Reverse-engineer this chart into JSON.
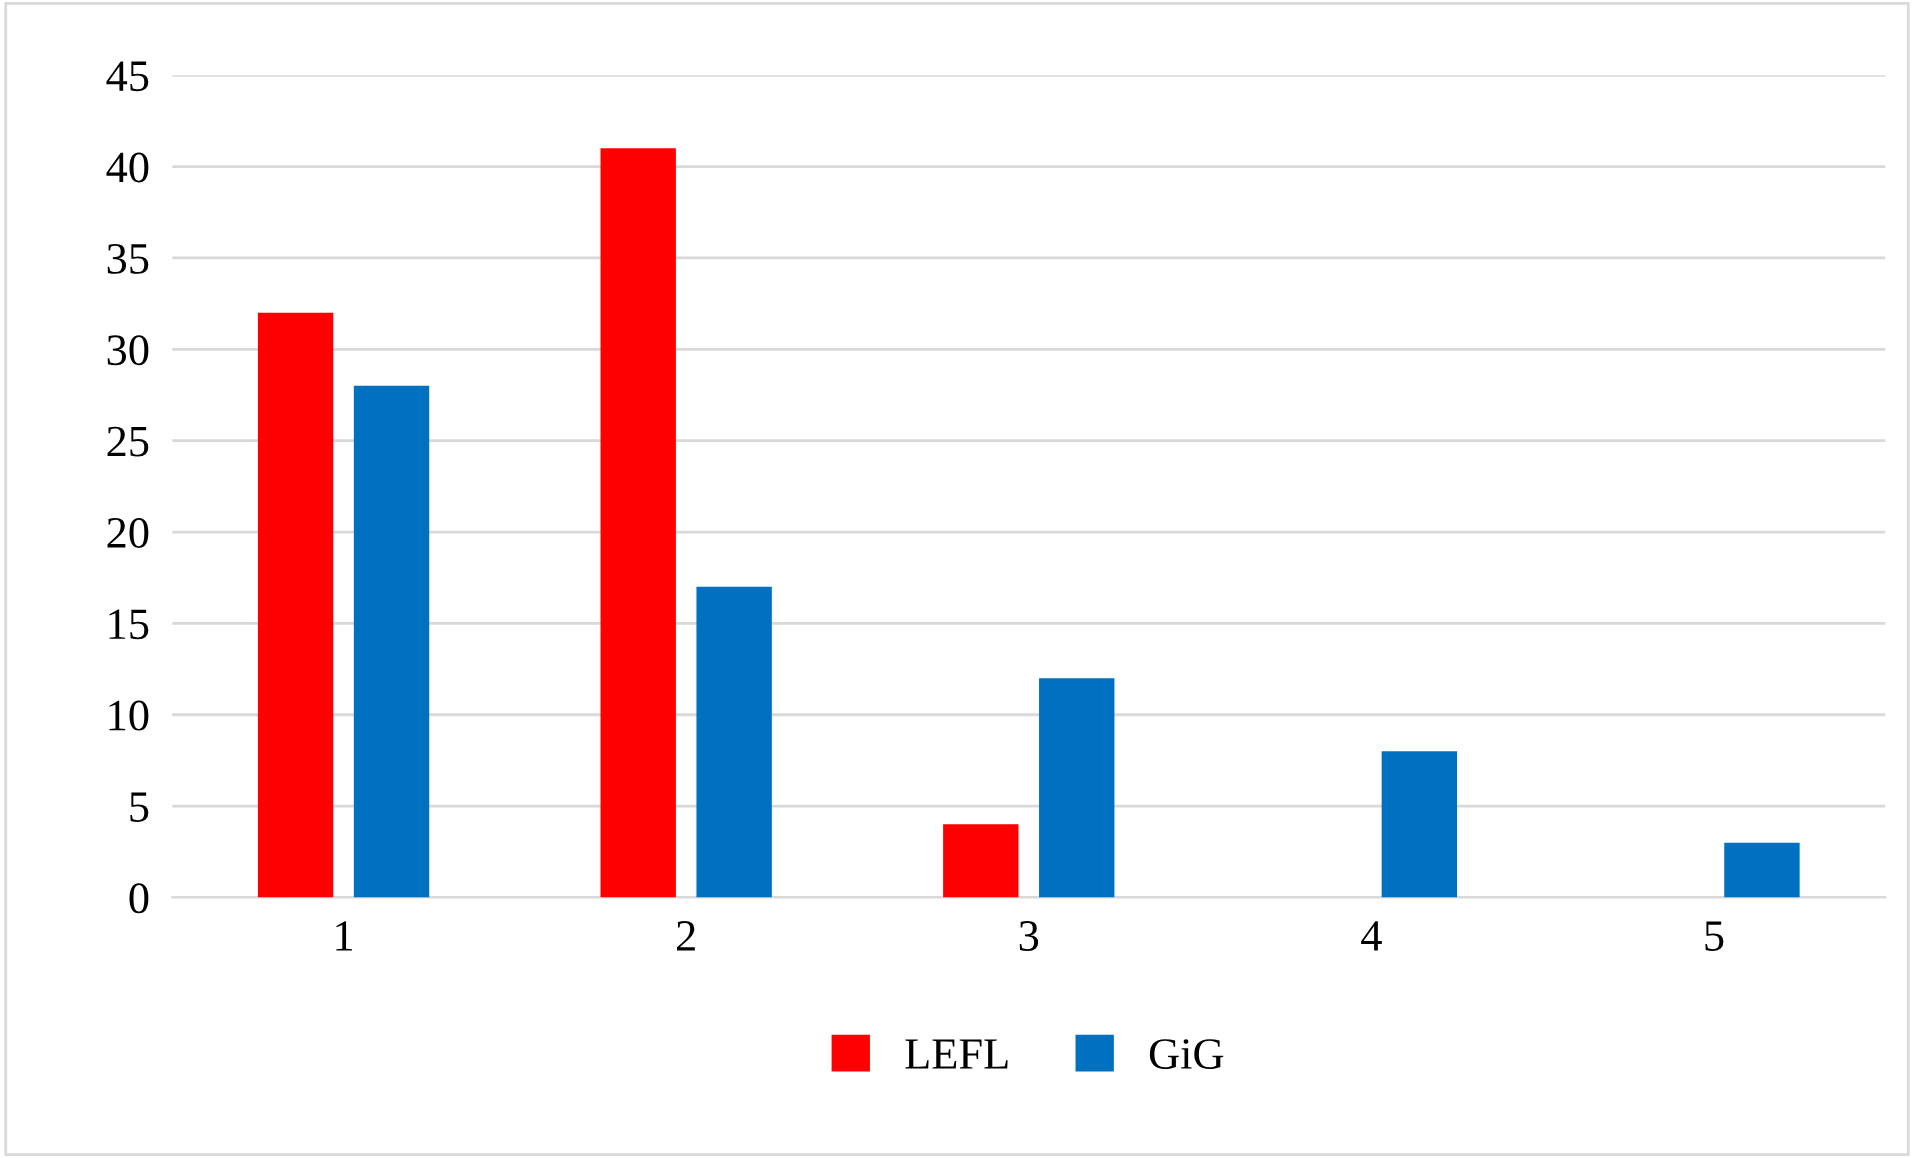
{
  "chart_data": {
    "type": "bar",
    "categories": [
      "1",
      "2",
      "3",
      "4",
      "5"
    ],
    "series": [
      {
        "name": "LEFL",
        "color": "#ff0000",
        "values": [
          32,
          41,
          4,
          null,
          null
        ]
      },
      {
        "name": "GiG",
        "color": "#0070c0",
        "values": [
          28,
          17,
          12,
          8,
          3
        ]
      }
    ],
    "ylim": [
      0,
      45
    ],
    "yticks": [
      0,
      5,
      10,
      15,
      20,
      25,
      30,
      35,
      40,
      45
    ],
    "grid": "y",
    "legend": "bottom"
  }
}
